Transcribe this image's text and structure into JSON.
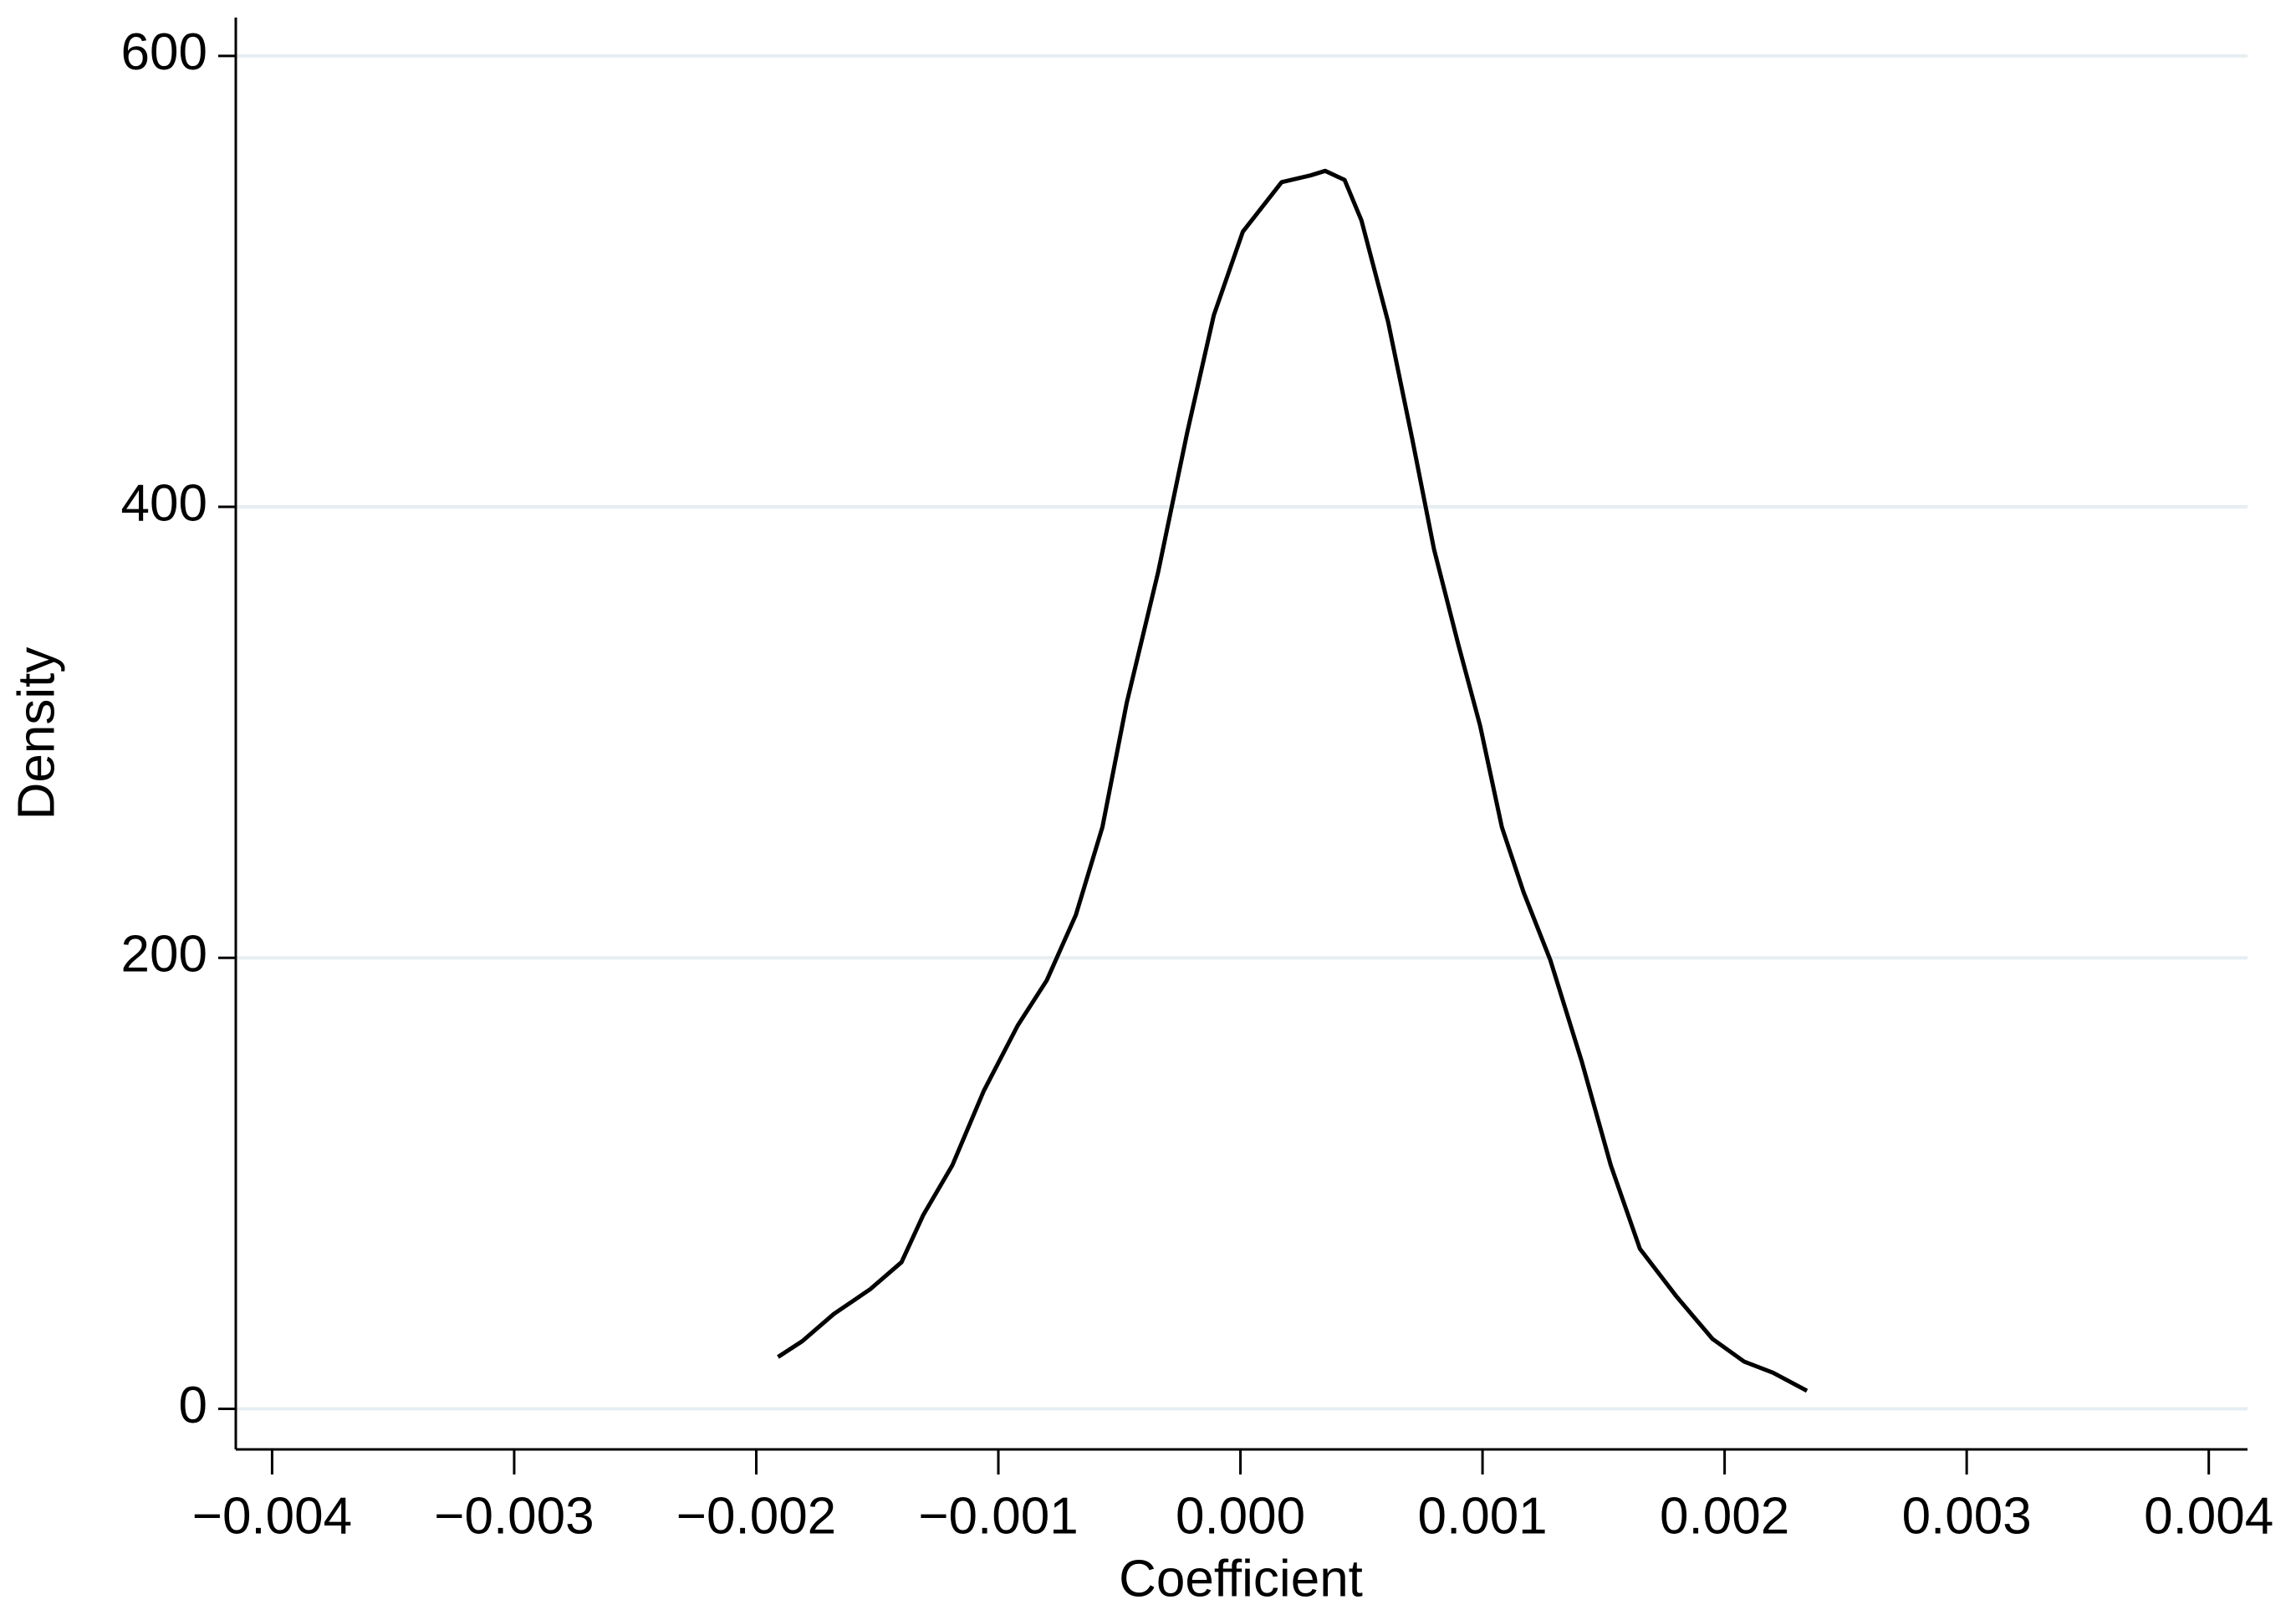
{
  "chart_data": {
    "type": "line",
    "x_label": "Coefficient",
    "y_label": "Density",
    "x": [
      -0.00191,
      -0.00181,
      -0.00168,
      -0.00153,
      -0.0014,
      -0.00131,
      -0.00119,
      -0.00106,
      -0.00092,
      -0.0008,
      -0.00068,
      -0.00057,
      -0.00047,
      -0.00034,
      -0.00022,
      -0.00011,
      1e-05,
      0.00017,
      0.00029,
      0.00035,
      0.00043,
      0.0005,
      0.00061,
      0.00071,
      0.0008,
      0.0009,
      0.00099,
      0.00108,
      0.00117,
      0.00128,
      0.00141,
      0.00153,
      0.00165,
      0.0018,
      0.00195,
      0.00208,
      0.0022,
      0.00234
    ],
    "series": [
      {
        "color": "#000000",
        "values": [
          23,
          30,
          42,
          53,
          65,
          86,
          108,
          141,
          170,
          190,
          219,
          258,
          313,
          371,
          433,
          485,
          522,
          544,
          547,
          549,
          545,
          527,
          482,
          430,
          381,
          339,
          303,
          258,
          229,
          199,
          154,
          108,
          71,
          50,
          31,
          21,
          16,
          8
        ]
      }
    ],
    "xlim": [
      -0.00415,
      0.00416
    ],
    "ylim": [
      -18,
      617
    ],
    "xticks": [
      {
        "value": -0.004,
        "label": "−0.004"
      },
      {
        "value": -0.003,
        "label": "−0.003"
      },
      {
        "value": -0.002,
        "label": "−0.002"
      },
      {
        "value": -0.001,
        "label": "−0.001"
      },
      {
        "value": 0,
        "label": "0.000"
      },
      0.001,
      0.002,
      0.003,
      0.004
    ],
    "yticks": [
      0,
      200,
      400,
      600
    ],
    "grid": true,
    "grid_color": "#e6eef2"
  }
}
